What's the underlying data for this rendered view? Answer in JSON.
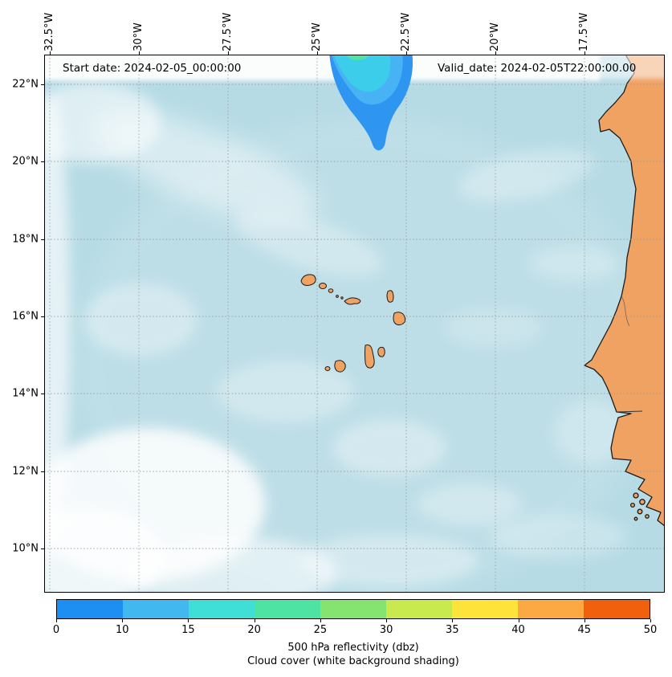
{
  "header": {
    "start_date": "Start date: 2024-02-05_00:00:00",
    "valid_date": "Valid_date: 2024-02-05T22:00:00.00"
  },
  "axes": {
    "lon_ticks": [
      "32.5°W",
      "30°W",
      "27.5°W",
      "25°W",
      "22.5°W",
      "20°W",
      "17.5°W"
    ],
    "lat_ticks": [
      "22°N",
      "20°N",
      "18°N",
      "16°N",
      "14°N",
      "12°N",
      "10°N"
    ]
  },
  "colorbar": {
    "title": "500 hPa reflectivity (dbz)",
    "subtitle": "Cloud cover (white background shading)",
    "tick_labels": [
      "0",
      "10",
      "15",
      "20",
      "25",
      "30",
      "35",
      "40",
      "45",
      "50"
    ],
    "segment_colors": [
      "#1e8ff2",
      "#41b9f0",
      "#3fded6",
      "#4fe3a3",
      "#85e470",
      "#c8ea4e",
      "#fee33b",
      "#fda943",
      "#f1600d"
    ]
  },
  "map": {
    "ocean_color": "#b7dbe5",
    "land_color": "#f0a263",
    "cloud_color": "#ffffff",
    "grid_color": "#999999",
    "reflectivity_colors": {
      "low": "#2e96f0",
      "mid": "#47b2f4",
      "high": "#3bcdea",
      "peak": "#4fe3a6"
    }
  }
}
